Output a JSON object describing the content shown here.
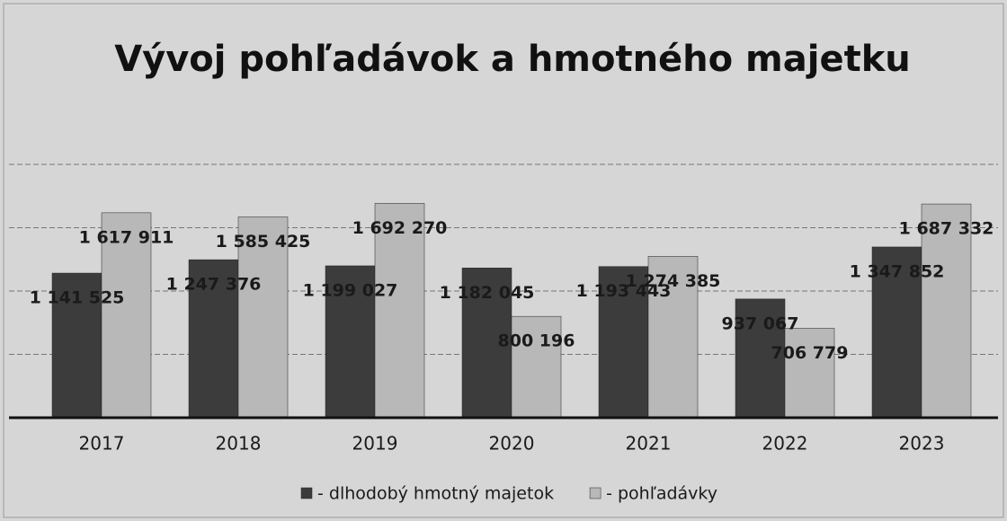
{
  "chart_data": {
    "type": "bar",
    "title": "Vývoj pohľadávok a hmotného majetku",
    "categories": [
      "2017",
      "2018",
      "2019",
      "2020",
      "2021",
      "2022",
      "2023"
    ],
    "series": [
      {
        "name": "- dlhodobý hmotný majetok",
        "color": "#3c3c3c",
        "values": [
          1141525,
          1247376,
          1199027,
          1182045,
          1193443,
          937067,
          1347852
        ],
        "value_labels": [
          "1 141 525",
          "1 247 376",
          "1 199 027",
          "1 182 045",
          "1 193 443",
          "937 067",
          "1 347 852"
        ]
      },
      {
        "name": "- pohľadávky",
        "color": "#b8b8b8",
        "values": [
          1617911,
          1585425,
          1692270,
          800196,
          1274385,
          706779,
          1687332
        ],
        "value_labels": [
          "1 617 911",
          "1 585 425",
          "1 692 270",
          "800 196",
          "1 274 385",
          "706 779",
          "1 687 332"
        ]
      }
    ],
    "ylim": [
      0,
      2000000
    ],
    "yticks": [
      0,
      500000,
      1000000,
      1500000,
      2000000
    ],
    "grid": true,
    "legend": "bottom"
  }
}
